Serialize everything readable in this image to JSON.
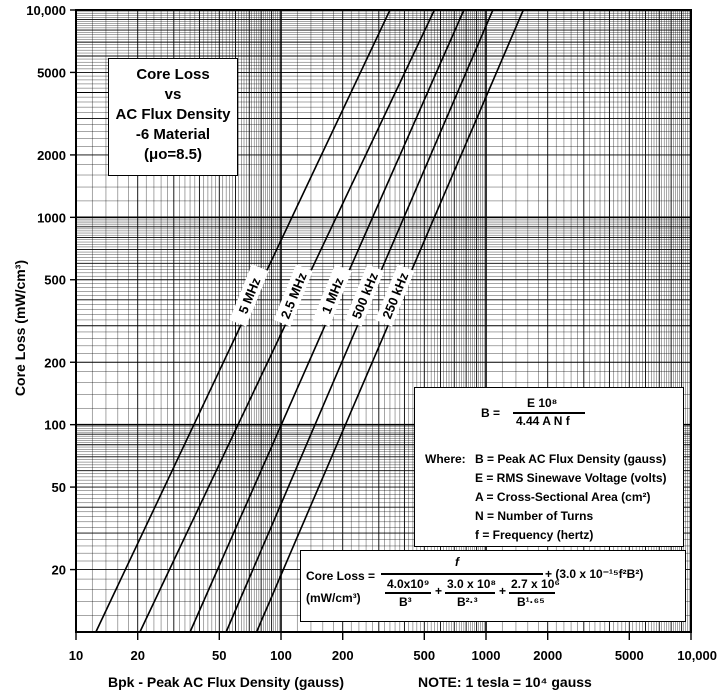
{
  "chart_data": {
    "type": "line",
    "x_scale": "log",
    "y_scale": "log",
    "xlim": [
      10,
      10000
    ],
    "ylim": [
      10,
      10000
    ],
    "xlabel": "Bpk - Peak AC Flux Density (gauss)",
    "ylabel": "Core Loss (mW/cm³)",
    "x_ticks": [
      10,
      20,
      50,
      100,
      200,
      500,
      1000,
      2000,
      5000,
      10000
    ],
    "x_tick_labels": [
      "10",
      "20",
      "50",
      "100",
      "200",
      "500",
      "1000",
      "2000",
      "5000",
      "10,000"
    ],
    "y_ticks": [
      20,
      50,
      100,
      200,
      500,
      1000,
      2000,
      5000,
      10000
    ],
    "y_tick_labels": [
      "20",
      "50",
      "100",
      "200",
      "500",
      "1000",
      "2000",
      "5000",
      "10,000"
    ],
    "grid": true,
    "series": [
      {
        "name": "5 MHz",
        "x": [
          12.5,
          340
        ],
        "y": [
          10,
          10000
        ]
      },
      {
        "name": "2.5 MHz",
        "x": [
          20.5,
          560
        ],
        "y": [
          10,
          10000
        ]
      },
      {
        "name": "1 MHz",
        "x": [
          36,
          780
        ],
        "y": [
          10,
          10000
        ]
      },
      {
        "name": "500 kHz",
        "x": [
          54,
          1080
        ],
        "y": [
          10,
          10000
        ]
      },
      {
        "name": "250 kHz",
        "x": [
          76,
          1520
        ],
        "y": [
          10,
          10000
        ]
      }
    ],
    "title_lines": [
      "Core Loss",
      "vs",
      "AC Flux Density",
      "-6 Material",
      "(μo=8.5)"
    ],
    "note": "NOTE: 1 tesla = 10⁴ gauss"
  },
  "formula": {
    "b_lhs": "B =",
    "b_num": "E 10⁸",
    "b_den": "4.44 A N f",
    "where": "Where:",
    "defs": [
      "B = Peak AC Flux Density (gauss)",
      "E = RMS Sinewave Voltage (volts)",
      "A = Cross-Sectional Area (cm²)",
      "N = Number of Turns",
      "f = Frequency (hertz)"
    ]
  },
  "core_loss_formula": {
    "lhs": "Core Loss =",
    "units": "(mW/cm³)",
    "num": "f",
    "t1_num": "4.0x10⁹",
    "t1_den": "B³",
    "t2_num": "3.0 x 10⁸",
    "t2_den": "B²·³",
    "t3_num": "2.7 x 10⁶",
    "t3_den": "B¹·⁶⁵",
    "plus": "+",
    "tail": "+ (3.0 x 10⁻¹⁵f²B²)"
  }
}
